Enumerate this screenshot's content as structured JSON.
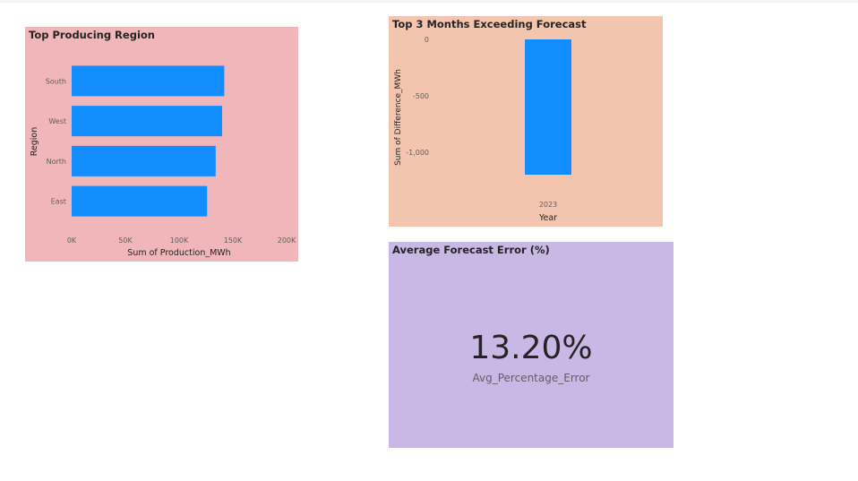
{
  "colors": {
    "bar": "#118dff",
    "production_bg": "#f0b6b9",
    "forecast_bg": "#f4c5ae",
    "error_bg": "#c9b8e6",
    "text_dark": "#252423",
    "text_muted": "#605e5c"
  },
  "production_card": {
    "title": "Top Producing Region",
    "bg": "#f0b6b9"
  },
  "forecast_card": {
    "title": "Top 3 Months Exceeding Forecast",
    "bg": "#f4c5ae"
  },
  "error_card": {
    "title": "Average Forecast Error (%)",
    "value": "13.20%",
    "label": "Avg_Percentage_Error",
    "bg": "#c9b8e6"
  },
  "chart_data": [
    {
      "type": "bar",
      "orientation": "horizontal",
      "title": "Top Producing Region",
      "categories": [
        "South",
        "West",
        "North",
        "East"
      ],
      "values": [
        142000,
        140000,
        134000,
        126000
      ],
      "xlabel": "Sum of Production_MWh",
      "ylabel": "Region",
      "xlim": [
        0,
        200000
      ],
      "xticks": [
        0,
        50000,
        100000,
        150000,
        200000
      ],
      "xtick_labels": [
        "0K",
        "50K",
        "100K",
        "150K",
        "200K"
      ],
      "grid": false,
      "color": "#118dff"
    },
    {
      "type": "bar",
      "orientation": "vertical",
      "title": "Top 3 Months Exceeding Forecast",
      "categories": [
        "2023"
      ],
      "values": [
        -1200
      ],
      "xlabel": "Year",
      "ylabel": "Sum of Difference_MWh",
      "ylim": [
        -1200,
        0
      ],
      "yticks": [
        0,
        -500,
        -1000
      ],
      "ytick_labels": [
        "0",
        "-500",
        "-1,000"
      ],
      "grid": false,
      "color": "#118dff"
    }
  ]
}
